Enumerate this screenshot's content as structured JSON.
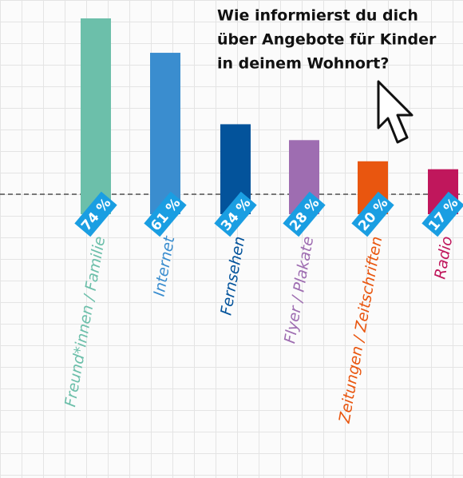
{
  "chart_data": {
    "type": "bar",
    "title": [
      "Wie informierst du dich",
      "über Angebote für Kinder",
      "in deinem Wohnort?"
    ],
    "categories": [
      "Freund*innen / Familie",
      "Internet",
      "Fernsehen",
      "Flyer / Plakate",
      "Zeitungen / Zeitschriften",
      "Radio"
    ],
    "values": [
      74,
      61,
      34,
      28,
      20,
      17
    ],
    "value_labels": [
      "74 %",
      "61 %",
      "34 %",
      "28 %",
      "20 %",
      "17 %"
    ],
    "colors": [
      "#6cbfaa",
      "#3a8dcf",
      "#03539b",
      "#9e6db1",
      "#e9560f",
      "#c0175c"
    ],
    "label_color": "#1a9ee2"
  }
}
